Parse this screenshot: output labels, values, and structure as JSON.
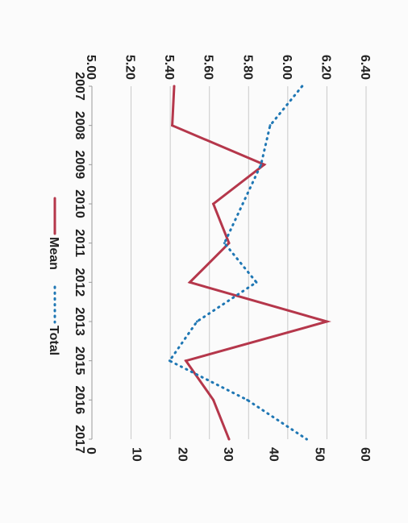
{
  "chart_data": {
    "type": "line",
    "orientation": "rotated 90 degrees clockwise",
    "categories": [
      "2007",
      "2008",
      "2009",
      "2010",
      "2011",
      "2012",
      "2013",
      "2015",
      "2016",
      "2017"
    ],
    "series": [
      {
        "name": "Mean",
        "axis": "left",
        "color": "#b5374b",
        "style": "solid",
        "values": [
          5.42,
          5.41,
          5.88,
          5.62,
          5.7,
          5.5,
          6.2,
          5.48,
          5.62,
          5.7
        ]
      },
      {
        "name": "Total",
        "axis": "right",
        "color": "#1f77b4",
        "style": "dotted",
        "values": [
          46,
          39,
          37,
          33,
          29,
          36,
          23,
          17,
          34,
          47
        ]
      }
    ],
    "left_axis": {
      "ylim": [
        5.0,
        6.4
      ],
      "ticks": [
        "5.00",
        "5.20",
        "5.40",
        "5.60",
        "5.80",
        "6.00",
        "6.20",
        "6.40"
      ]
    },
    "right_axis": {
      "ylim": [
        0,
        60
      ],
      "ticks": [
        "0",
        "10",
        "20",
        "30",
        "40",
        "50",
        "60"
      ]
    },
    "grid": true,
    "legend_position": "bottom"
  }
}
